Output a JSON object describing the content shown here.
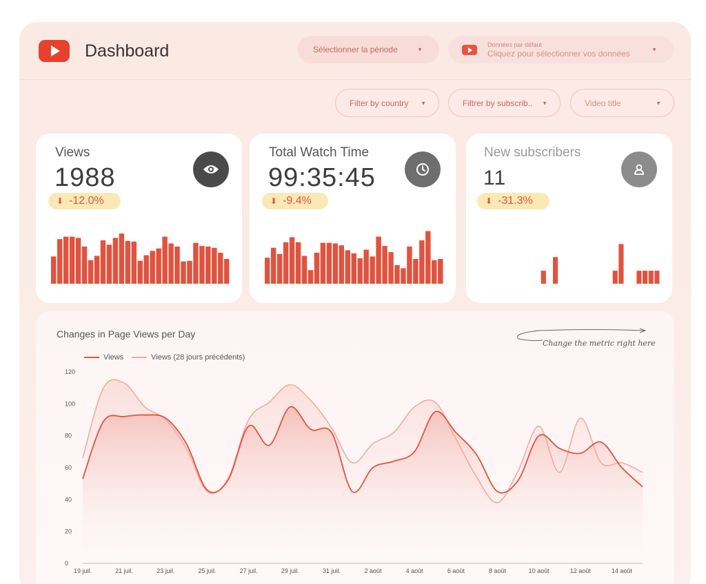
{
  "header": {
    "title": "Dashboard",
    "period_select": "Sélectionner la période",
    "data_source": {
      "label": "Données par défaut",
      "value": "Cliquez pour sélectionner vos données"
    }
  },
  "filters": {
    "country": "Filter by country",
    "subscribers": "Filtrer by subscrib..",
    "video_title": "Video title"
  },
  "cards": [
    {
      "label": "Views",
      "value": "1988",
      "change": "-12.0%",
      "icon": "eye-icon",
      "spark": [
        44,
        72,
        76,
        76,
        74,
        60,
        38,
        45,
        70,
        63,
        74,
        81,
        69,
        68,
        37,
        46,
        53,
        57,
        76,
        65,
        60,
        36,
        37,
        66,
        61,
        60,
        58,
        50,
        40
      ]
    },
    {
      "label": "Total Watch Time",
      "value": "99:35:45",
      "change": "-9.4%",
      "icon": "clock-icon",
      "spark": [
        42,
        58,
        48,
        67,
        75,
        67,
        45,
        22,
        50,
        66,
        66,
        65,
        62,
        54,
        49,
        41,
        55,
        44,
        76,
        61,
        51,
        30,
        25,
        60,
        40,
        70,
        85,
        38,
        40
      ]
    },
    {
      "label": "New subscribers",
      "value": "11",
      "change": "-31.3%",
      "icon": "user-icon",
      "spark": [
        0,
        0,
        0,
        0,
        0,
        0,
        0,
        0,
        0,
        0,
        21,
        0,
        43,
        0,
        0,
        0,
        0,
        0,
        0,
        0,
        0,
        0,
        21,
        64,
        0,
        0,
        21,
        21,
        21,
        21
      ]
    }
  ],
  "chart": {
    "title": "Changes in Page Views per Day",
    "hint": "Change the metric right here",
    "colors": {
      "views": "#e0533e",
      "previous": "#f2aaa2"
    }
  },
  "chart_data": {
    "type": "line",
    "title": "Changes in Page Views per Day",
    "ylim": [
      0,
      120
    ],
    "y_ticks": [
      0,
      20,
      40,
      60,
      80,
      100,
      120
    ],
    "x_tick_labels": [
      "19 juil.",
      "21 juil.",
      "23 juil.",
      "25 juil.",
      "27 juil.",
      "29 juil.",
      "31 juil.",
      "2 août",
      "4 août",
      "6 août",
      "8 août",
      "10 août",
      "12 août",
      "14 août"
    ],
    "x": [
      "19 juil.",
      "20 juil.",
      "21 juil.",
      "22 juil.",
      "23 juil.",
      "24 juil.",
      "25 juil.",
      "26 juil.",
      "27 juil.",
      "28 juil.",
      "29 juil.",
      "30 juil.",
      "31 juil.",
      "1 août",
      "2 août",
      "3 août",
      "4 août",
      "5 août",
      "6 août",
      "7 août",
      "8 août",
      "9 août",
      "10 août",
      "11 août",
      "12 août",
      "13 août",
      "14 août",
      "15 août"
    ],
    "series": [
      {
        "name": "Views",
        "values": [
          53,
          89,
          92,
          93,
          91,
          75,
          46,
          52,
          86,
          74,
          98,
          84,
          82,
          45,
          60,
          64,
          70,
          95,
          82,
          68,
          45,
          52,
          80,
          72,
          69,
          76,
          60,
          48
        ]
      },
      {
        "name": "Views (28 jours précédents)",
        "values": [
          66,
          110,
          113,
          98,
          90,
          72,
          45,
          53,
          90,
          101,
          112,
          102,
          85,
          63,
          75,
          82,
          98,
          101,
          78,
          54,
          38,
          58,
          86,
          57,
          91,
          63,
          63,
          57
        ]
      }
    ]
  }
}
